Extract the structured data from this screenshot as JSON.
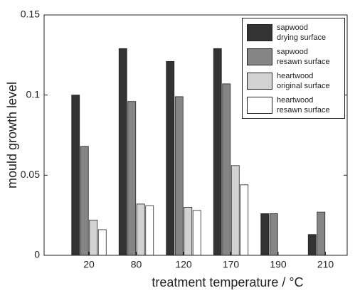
{
  "chart_data": {
    "type": "bar",
    "x_label": "treatment temperature / °C",
    "y_label": "mould growth level",
    "categories": [
      "20",
      "80",
      "120",
      "170",
      "190",
      "210"
    ],
    "series": [
      {
        "name": "sapwood\ndrying surface",
        "color": "#333333",
        "values": [
          0.1,
          0.129,
          0.121,
          0.129,
          0.026,
          0.013
        ]
      },
      {
        "name": "sapwood\nresawn surface",
        "color": "#858585",
        "values": [
          0.068,
          0.096,
          0.099,
          0.107,
          0.026,
          0.027
        ]
      },
      {
        "name": "heartwood\noriginal surface",
        "color": "#d2d2d2",
        "values": [
          0.022,
          0.032,
          0.03,
          0.056,
          0,
          0
        ]
      },
      {
        "name": "heartwood\nresawn surface",
        "color": "#ffffff",
        "values": [
          0.016,
          0.031,
          0.028,
          0.044,
          0,
          0
        ]
      }
    ],
    "ylim": [
      0,
      0.15
    ],
    "yticks": [
      0,
      0.05,
      0.1,
      0.15
    ],
    "legend": "upper right"
  }
}
